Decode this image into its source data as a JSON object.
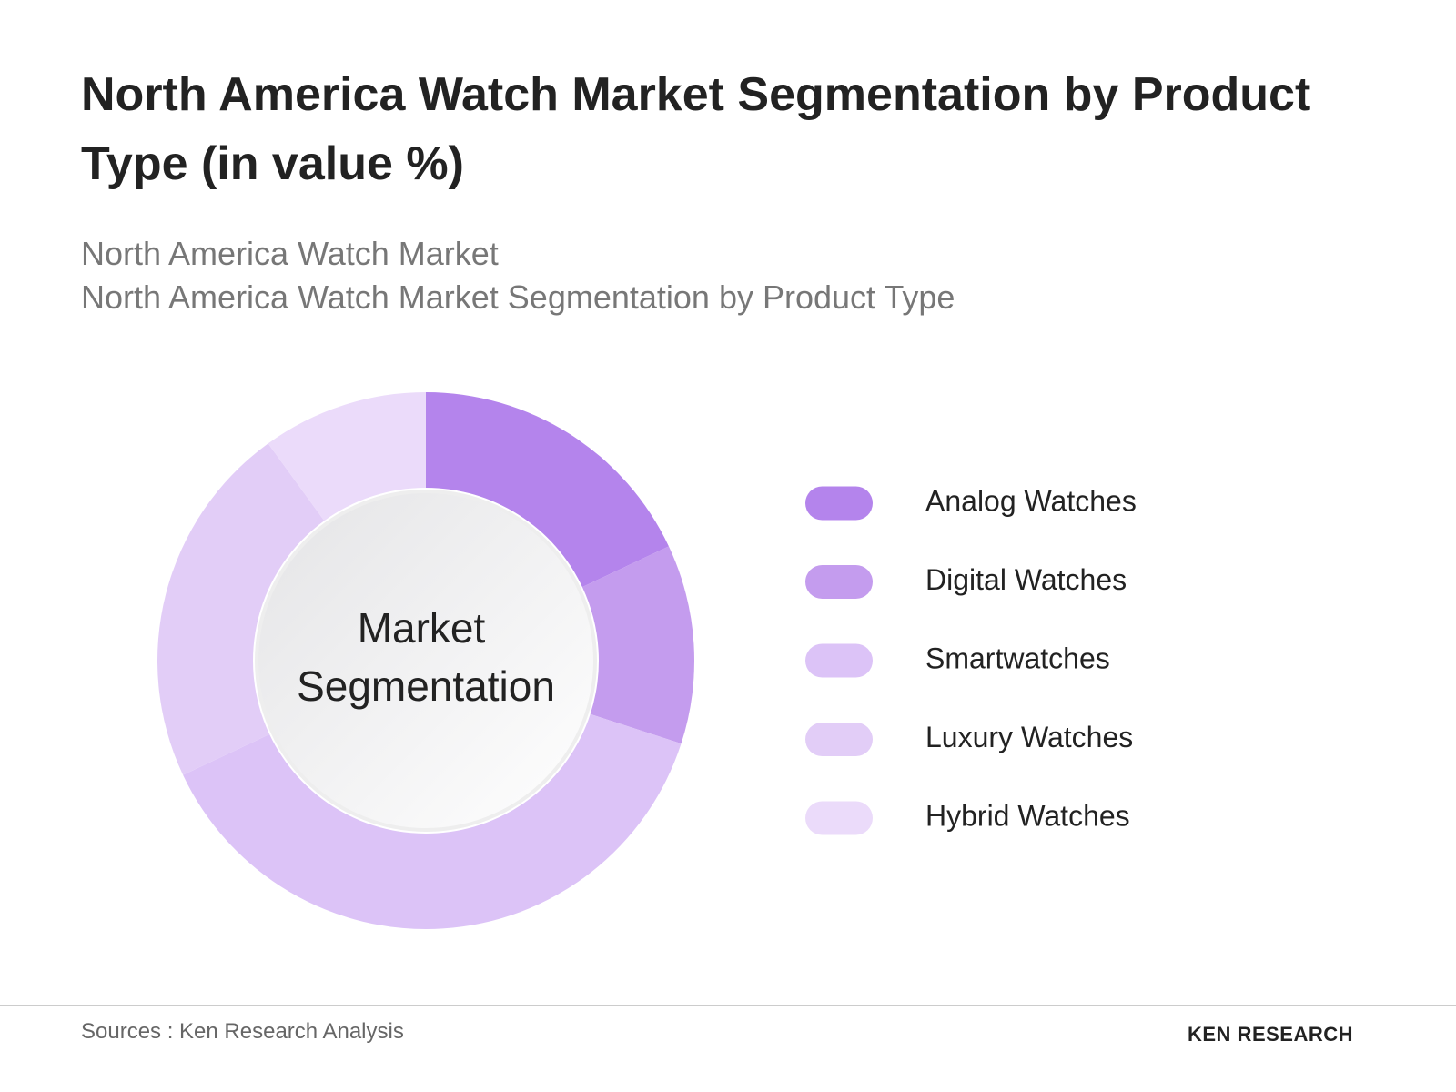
{
  "chart_data": {
    "type": "donut",
    "title": "North America Watch Market Segmentation by Product Type (in value %)",
    "subtitle": [
      "North America Watch Market",
      "North America Watch Market Segmentation by Product Type"
    ],
    "center_label": [
      "Market",
      "Segmentation"
    ],
    "categories": [
      "Analog Watches",
      "Digital Watches",
      "Smartwatches",
      "Luxury Watches",
      "Hybrid Watches"
    ],
    "values": [
      18,
      12,
      38,
      22,
      10
    ],
    "colors": [
      "#b484ec",
      "#c49cee",
      "#dcc3f7",
      "#e2cdf7",
      "#ebdbfa"
    ],
    "legend": "right"
  },
  "footer": {
    "source": "Sources : Ken Research Analysis",
    "logo": "KEN RESEARCH"
  }
}
